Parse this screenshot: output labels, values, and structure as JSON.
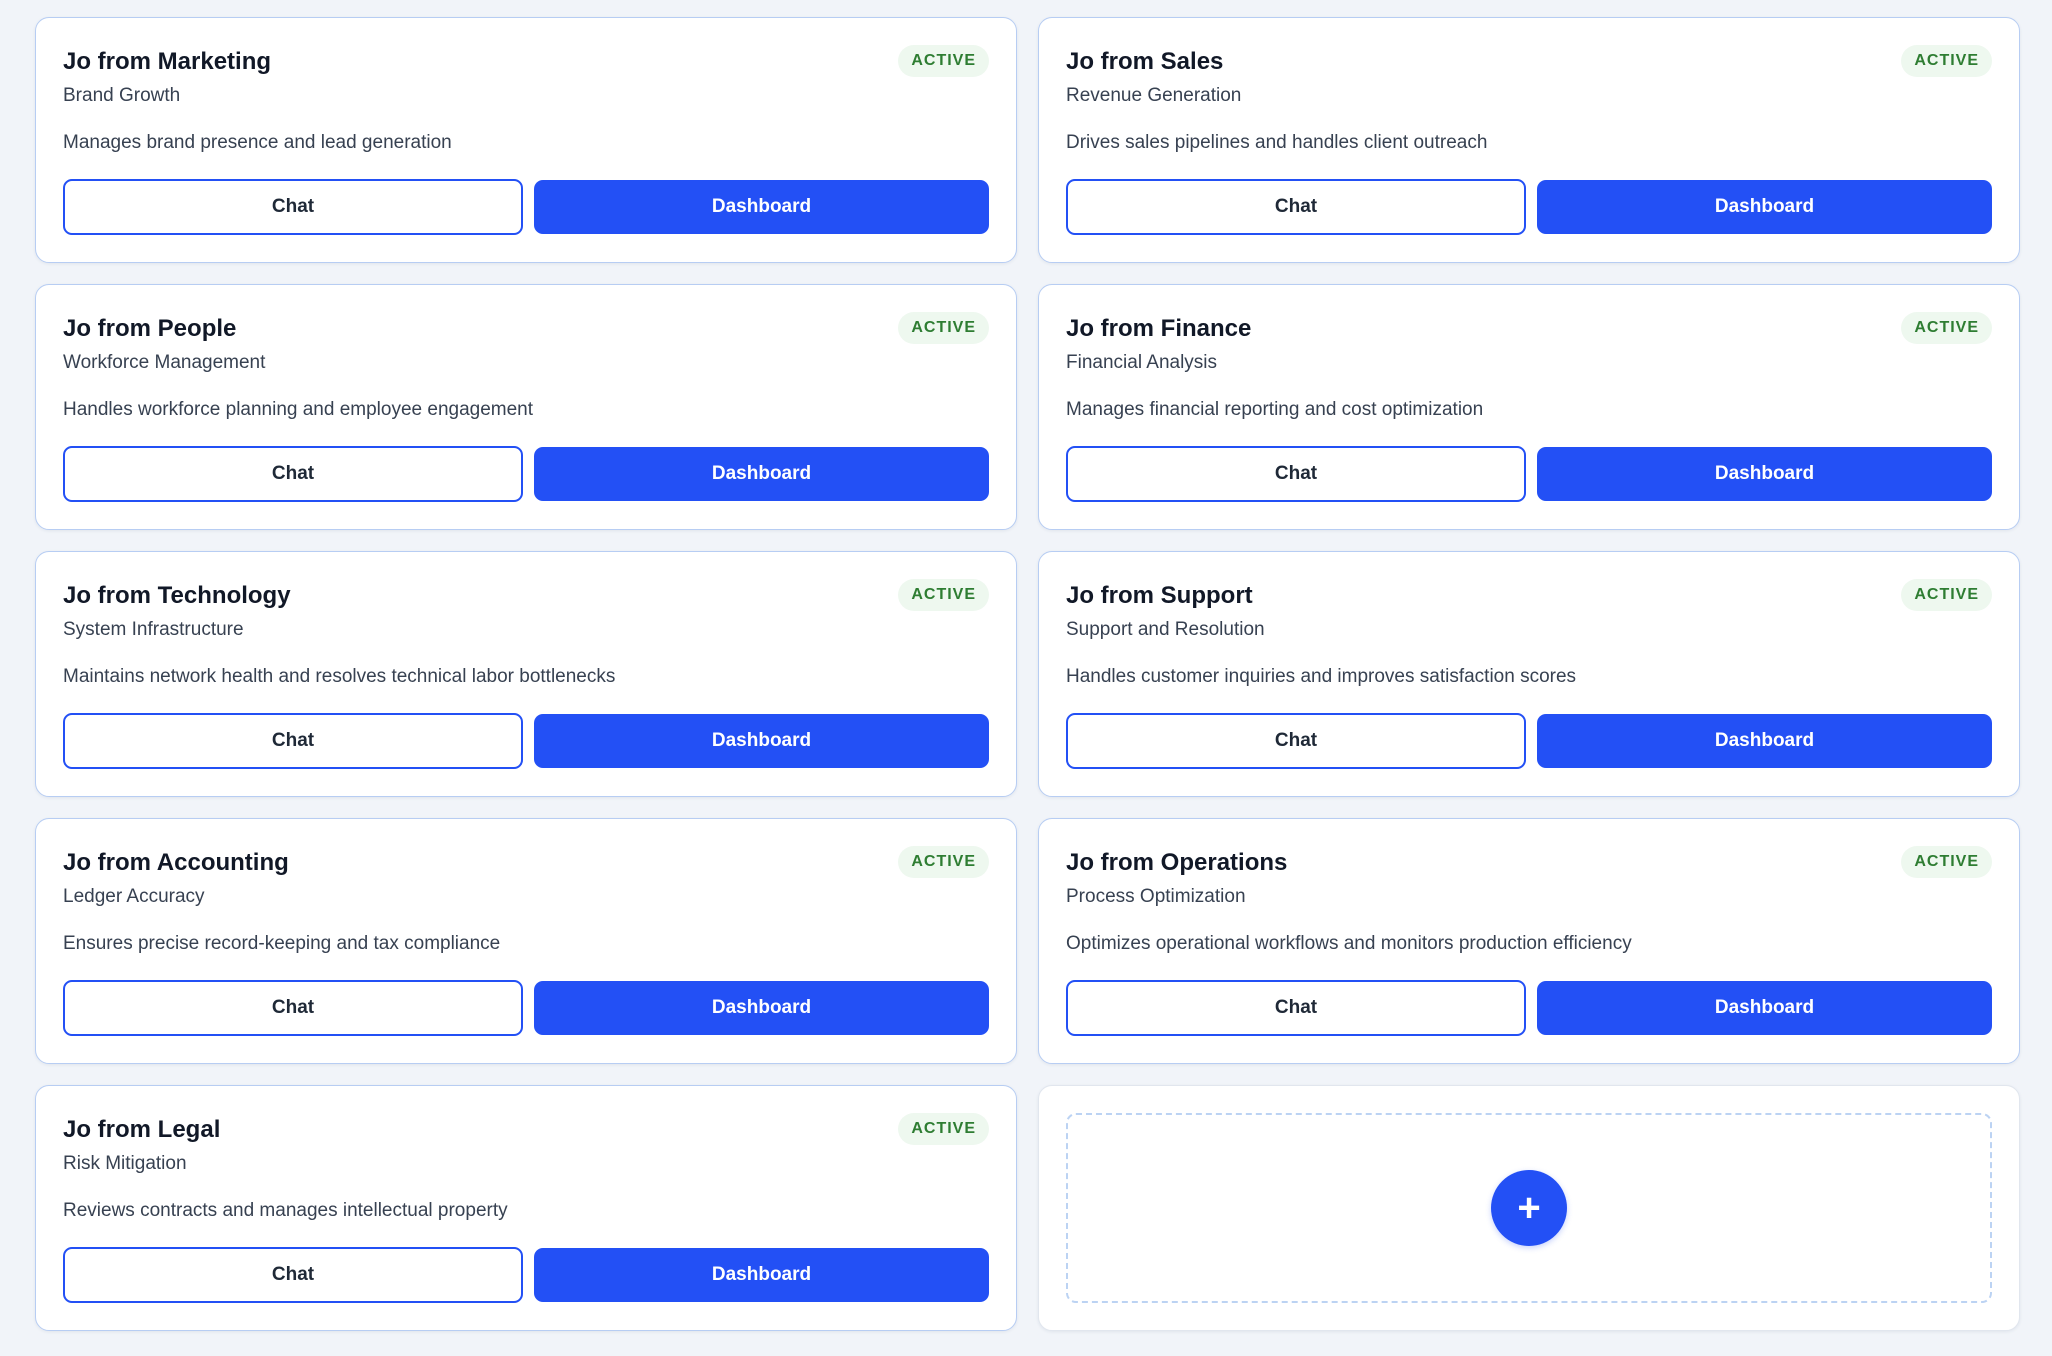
{
  "colors": {
    "accent": "#2350f5",
    "badge_text": "#2e7d32",
    "badge_bg": "#eef8ef",
    "background": "#f1f4f9"
  },
  "agents": [
    {
      "title": "Jo from Marketing",
      "subtitle": "Brand Growth",
      "description": "Manages brand presence and lead generation",
      "status": "ACTIVE",
      "chat_label": "Chat",
      "dashboard_label": "Dashboard"
    },
    {
      "title": "Jo from Sales",
      "subtitle": "Revenue Generation",
      "description": "Drives sales pipelines and handles client outreach",
      "status": "ACTIVE",
      "chat_label": "Chat",
      "dashboard_label": "Dashboard"
    },
    {
      "title": "Jo from People",
      "subtitle": "Workforce Management",
      "description": "Handles workforce planning and employee engagement",
      "status": "ACTIVE",
      "chat_label": "Chat",
      "dashboard_label": "Dashboard"
    },
    {
      "title": "Jo from Finance",
      "subtitle": "Financial Analysis",
      "description": "Manages financial reporting and cost optimization",
      "status": "ACTIVE",
      "chat_label": "Chat",
      "dashboard_label": "Dashboard"
    },
    {
      "title": "Jo from Technology",
      "subtitle": "System Infrastructure",
      "description": "Maintains network health and resolves technical labor bottlenecks",
      "status": "ACTIVE",
      "chat_label": "Chat",
      "dashboard_label": "Dashboard"
    },
    {
      "title": "Jo from Support",
      "subtitle": "Support and Resolution",
      "description": "Handles customer inquiries and improves satisfaction scores",
      "status": "ACTIVE",
      "chat_label": "Chat",
      "dashboard_label": "Dashboard"
    },
    {
      "title": "Jo from Accounting",
      "subtitle": "Ledger Accuracy",
      "description": "Ensures precise record-keeping and tax compliance",
      "status": "ACTIVE",
      "chat_label": "Chat",
      "dashboard_label": "Dashboard"
    },
    {
      "title": "Jo from Operations",
      "subtitle": "Process Optimization",
      "description": "Optimizes operational workflows and monitors production efficiency",
      "status": "ACTIVE",
      "chat_label": "Chat",
      "dashboard_label": "Dashboard"
    },
    {
      "title": "Jo from Legal",
      "subtitle": "Risk Mitigation",
      "description": "Reviews contracts and manages intellectual property",
      "status": "ACTIVE",
      "chat_label": "Chat",
      "dashboard_label": "Dashboard"
    }
  ],
  "add_card": {
    "icon": "plus-icon",
    "symbol": "+"
  }
}
